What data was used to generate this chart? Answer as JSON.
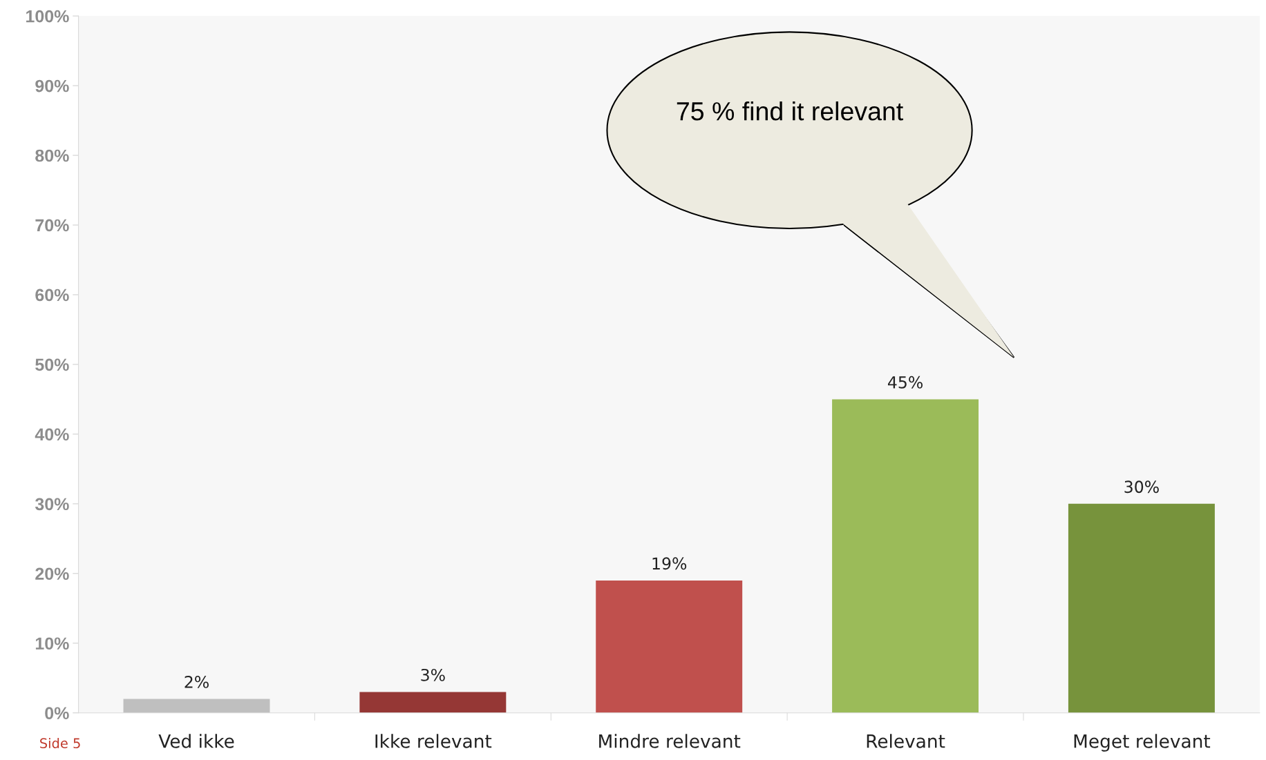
{
  "chart_data": {
    "type": "bar",
    "categories": [
      "Ved ikke",
      "Ikke relevant",
      "Mindre relevant",
      "Relevant",
      "Meget relevant"
    ],
    "values": [
      2,
      3,
      19,
      45,
      30
    ],
    "colors": [
      "#bfbfbf",
      "#953735",
      "#c0504d",
      "#9bbb59",
      "#77933c"
    ],
    "value_labels": [
      "2%",
      "3%",
      "19%",
      "45%",
      "30%"
    ],
    "ylim": [
      0,
      100
    ],
    "yticks": [
      {
        "value": 0,
        "label": "0%"
      },
      {
        "value": 10,
        "label": "10%"
      },
      {
        "value": 20,
        "label": "20%"
      },
      {
        "value": 30,
        "label": "30%"
      },
      {
        "value": 40,
        "label": "40%"
      },
      {
        "value": 50,
        "label": "50%"
      },
      {
        "value": 60,
        "label": "60%"
      },
      {
        "value": 70,
        "label": "70%"
      },
      {
        "value": 80,
        "label": "80%"
      },
      {
        "value": 90,
        "label": "90%"
      },
      {
        "value": 100,
        "label": "100%"
      }
    ],
    "grid": false,
    "annotations": [
      "75 % find it relevant",
      "Side 5"
    ]
  }
}
